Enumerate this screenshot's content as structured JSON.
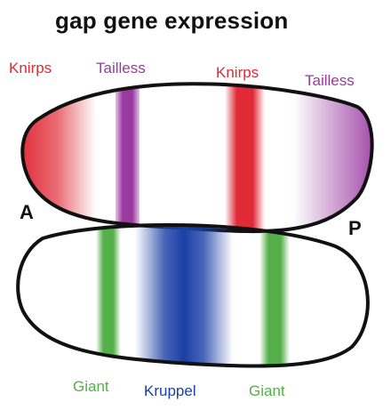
{
  "title": "gap gene expression",
  "axis": {
    "anterior": "A",
    "posterior": "P"
  },
  "colors": {
    "knirps": "#e02a36",
    "tailless": "#9a3aa0",
    "kruppel": "#1a3fa6",
    "giant": "#56b04a",
    "outline": "#111111",
    "text": "#111111"
  },
  "top_embryo": {
    "labels": [
      {
        "gene": "knirps",
        "text": "Knirps"
      },
      {
        "gene": "tailless",
        "text": "Tailless"
      },
      {
        "gene": "knirps",
        "text": "Knirps"
      },
      {
        "gene": "tailless",
        "text": "Tailless"
      }
    ]
  },
  "bottom_embryo": {
    "labels": [
      {
        "gene": "giant",
        "text": "Giant"
      },
      {
        "gene": "kruppel",
        "text": "Kruppel"
      },
      {
        "gene": "giant",
        "text": "Giant"
      }
    ]
  }
}
